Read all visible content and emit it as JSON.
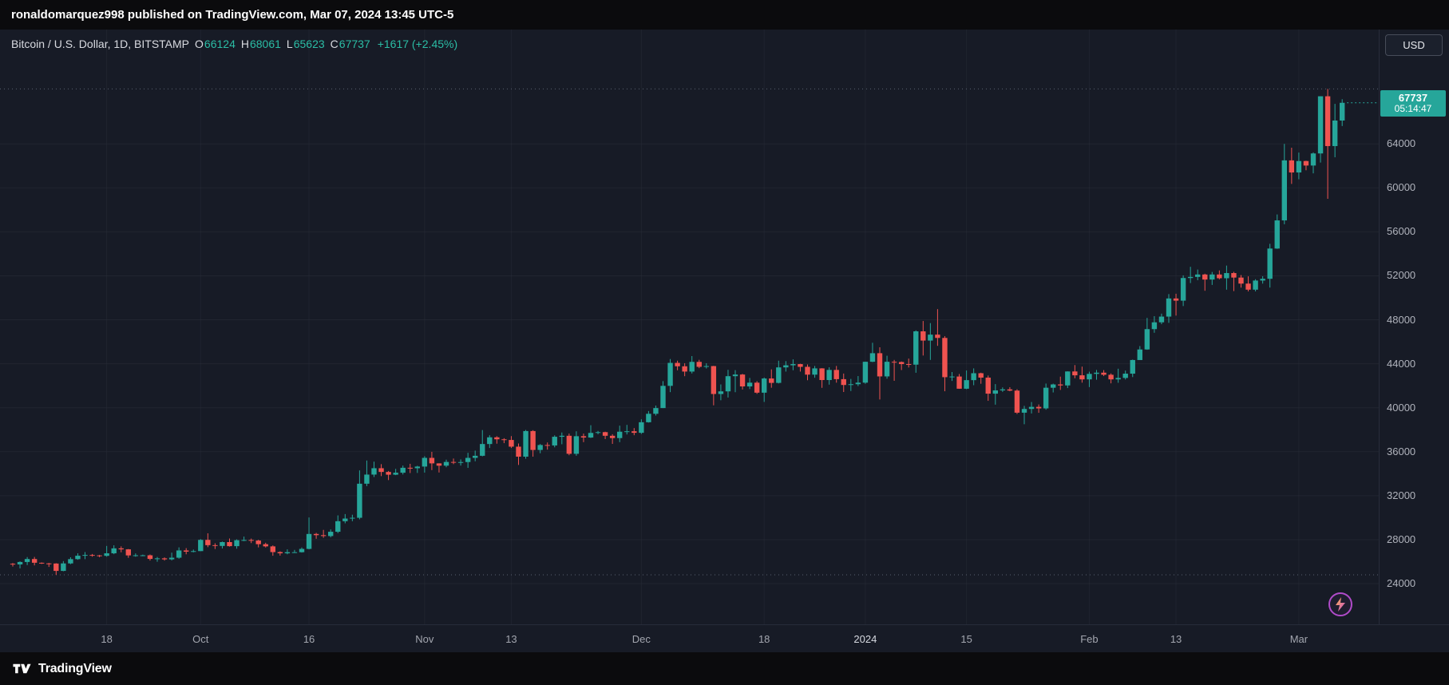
{
  "topbar": {
    "text": "ronaldomarquez998 published on TradingView.com, Mar 07, 2024 13:45 UTC-5"
  },
  "legend": {
    "title": "Bitcoin / U.S. Dollar, 1D, BITSTAMP",
    "ohlc": [
      {
        "label": "O",
        "value": "66124"
      },
      {
        "label": "H",
        "value": "68061"
      },
      {
        "label": "L",
        "value": "65623"
      },
      {
        "label": "C",
        "value": "67737"
      }
    ],
    "change": "+1617 (+2.45%)"
  },
  "currency_button": "USD",
  "price_axis": {
    "labels": [
      "64000",
      "60000",
      "56000",
      "52000",
      "48000",
      "44000",
      "40000",
      "36000",
      "32000",
      "28000",
      "24000"
    ],
    "badge": {
      "price": "67737",
      "countdown": "05:14:47"
    }
  },
  "time_axis": {
    "ticks": [
      {
        "index": 13,
        "label": "18"
      },
      {
        "index": 26,
        "label": "Oct"
      },
      {
        "index": 41,
        "label": "16"
      },
      {
        "index": 57,
        "label": "Nov"
      },
      {
        "index": 69,
        "label": "13"
      },
      {
        "index": 87,
        "label": "Dec"
      },
      {
        "index": 104,
        "label": "18"
      },
      {
        "index": 118,
        "label": "2024",
        "strong": true
      },
      {
        "index": 132,
        "label": "15"
      },
      {
        "index": 149,
        "label": "Feb"
      },
      {
        "index": 161,
        "label": "13"
      },
      {
        "index": 178,
        "label": "Mar"
      }
    ]
  },
  "footer": {
    "brand": "TradingView"
  },
  "colors": {
    "up": "#26a69a",
    "down": "#ef5350",
    "grid": "rgba(42,46,57,0.55)",
    "vgrid": "rgba(42,46,57,0.45)",
    "dotted": "#596070",
    "badge_bg": "#26a69a",
    "axis_text": "#b0b3bc",
    "background": "#171b26"
  },
  "chart_data": {
    "type": "candlestick",
    "title": "Bitcoin / U.S. Dollar, 1D, BITSTAMP",
    "symbol": "BTCUSD",
    "exchange": "BITSTAMP",
    "interval": "1D",
    "start_date": "2023-09-05",
    "end_date": "2024-03-07",
    "last_price": 67737,
    "price_range_visible": [
      20300,
      74400
    ],
    "grid_prices": [
      24000,
      28000,
      32000,
      36000,
      40000,
      44000,
      48000,
      52000,
      56000,
      60000,
      64000
    ],
    "high_line": 69000,
    "low_line": 24800,
    "candles_format": [
      "open",
      "high",
      "low",
      "close"
    ],
    "candles": [
      [
        25810,
        25870,
        25560,
        25750
      ],
      [
        25750,
        26030,
        25390,
        25970
      ],
      [
        25970,
        26420,
        25690,
        26240
      ],
      [
        26240,
        26430,
        25660,
        25900
      ],
      [
        25900,
        25930,
        25790,
        25840
      ],
      [
        25840,
        25890,
        25520,
        25830
      ],
      [
        25830,
        25860,
        24800,
        25160
      ],
      [
        25160,
        26050,
        25130,
        25840
      ],
      [
        25840,
        26400,
        25770,
        26230
      ],
      [
        26230,
        26760,
        26170,
        26540
      ],
      [
        26540,
        26870,
        26230,
        26610
      ],
      [
        26610,
        26700,
        26450,
        26570
      ],
      [
        26570,
        26620,
        26400,
        26530
      ],
      [
        26530,
        27430,
        26450,
        26760
      ],
      [
        26760,
        27490,
        26680,
        27210
      ],
      [
        27210,
        27390,
        26850,
        27120
      ],
      [
        27120,
        27150,
        26350,
        26570
      ],
      [
        26570,
        26750,
        26450,
        26580
      ],
      [
        26580,
        26640,
        26500,
        26580
      ],
      [
        26580,
        26650,
        26100,
        26250
      ],
      [
        26250,
        26430,
        25990,
        26300
      ],
      [
        26300,
        26390,
        26100,
        26210
      ],
      [
        26210,
        26820,
        26110,
        26360
      ],
      [
        26360,
        27300,
        26270,
        27020
      ],
      [
        27020,
        27230,
        26670,
        26910
      ],
      [
        26910,
        27100,
        26850,
        26960
      ],
      [
        26960,
        28050,
        26960,
        27980
      ],
      [
        27980,
        28580,
        27320,
        27500
      ],
      [
        27500,
        27670,
        27150,
        27430
      ],
      [
        27430,
        27830,
        27200,
        27780
      ],
      [
        27780,
        28110,
        27370,
        27410
      ],
      [
        27410,
        28030,
        27180,
        27950
      ],
      [
        27950,
        28280,
        27870,
        27970
      ],
      [
        27970,
        28100,
        27690,
        27920
      ],
      [
        27920,
        27990,
        27300,
        27590
      ],
      [
        27590,
        27720,
        27290,
        27390
      ],
      [
        27390,
        27480,
        26540,
        26870
      ],
      [
        26870,
        26940,
        26550,
        26760
      ],
      [
        26760,
        27120,
        26670,
        26860
      ],
      [
        26860,
        27070,
        26800,
        26860
      ],
      [
        26860,
        27290,
        26830,
        27160
      ],
      [
        27160,
        30020,
        27120,
        28520
      ],
      [
        28520,
        28620,
        28080,
        28410
      ],
      [
        28410,
        28890,
        28170,
        28330
      ],
      [
        28330,
        28930,
        28210,
        28720
      ],
      [
        28720,
        30210,
        28600,
        29680
      ],
      [
        29680,
        30330,
        29490,
        29920
      ],
      [
        29920,
        30270,
        29680,
        29990
      ],
      [
        29990,
        34300,
        29850,
        33090
      ],
      [
        33090,
        35200,
        32870,
        33920
      ],
      [
        33920,
        35100,
        33700,
        34500
      ],
      [
        34500,
        34870,
        33780,
        34160
      ],
      [
        34160,
        34250,
        33420,
        33910
      ],
      [
        33910,
        34440,
        33870,
        34090
      ],
      [
        34090,
        34740,
        33930,
        34540
      ],
      [
        34540,
        34900,
        34060,
        34500
      ],
      [
        34500,
        34720,
        34070,
        34650
      ],
      [
        34650,
        35590,
        34100,
        35440
      ],
      [
        35440,
        35990,
        34330,
        34940
      ],
      [
        34940,
        34950,
        34110,
        34730
      ],
      [
        34730,
        35280,
        34590,
        35070
      ],
      [
        35070,
        35380,
        34870,
        35050
      ],
      [
        35050,
        35300,
        34740,
        35060
      ],
      [
        35060,
        35900,
        34530,
        35440
      ],
      [
        35440,
        36100,
        35130,
        35630
      ],
      [
        35630,
        37970,
        35580,
        36700
      ],
      [
        36700,
        37500,
        36340,
        37310
      ],
      [
        37310,
        37410,
        36730,
        37130
      ],
      [
        37130,
        37230,
        36780,
        37070
      ],
      [
        37070,
        37420,
        36340,
        36460
      ],
      [
        36460,
        36750,
        34800,
        35550
      ],
      [
        35550,
        37980,
        35360,
        37880
      ],
      [
        37880,
        37960,
        35550,
        36160
      ],
      [
        36160,
        36700,
        35860,
        36610
      ],
      [
        36610,
        36840,
        36190,
        36570
      ],
      [
        36570,
        37490,
        36400,
        37360
      ],
      [
        37360,
        37750,
        36680,
        37450
      ],
      [
        37450,
        37650,
        35680,
        35810
      ],
      [
        35810,
        37860,
        35630,
        37410
      ],
      [
        37410,
        37650,
        36870,
        37290
      ],
      [
        37290,
        38410,
        37250,
        37710
      ],
      [
        37710,
        37890,
        37590,
        37780
      ],
      [
        37780,
        37820,
        37150,
        37450
      ],
      [
        37450,
        37590,
        36710,
        37240
      ],
      [
        37240,
        38370,
        36870,
        37820
      ],
      [
        37820,
        38440,
        37570,
        37860
      ],
      [
        37860,
        38150,
        37500,
        37720
      ],
      [
        37720,
        38950,
        37620,
        38680
      ],
      [
        38680,
        39700,
        38650,
        39450
      ],
      [
        39450,
        40200,
        39290,
        39970
      ],
      [
        39970,
        42420,
        39970,
        41990
      ],
      [
        41990,
        44430,
        41420,
        44080
      ],
      [
        44080,
        44280,
        43410,
        43770
      ],
      [
        43770,
        44050,
        42870,
        43290
      ],
      [
        43290,
        44700,
        43120,
        44170
      ],
      [
        44170,
        44360,
        43600,
        43720
      ],
      [
        43720,
        44050,
        43570,
        43790
      ],
      [
        43790,
        43810,
        40220,
        41250
      ],
      [
        41250,
        42120,
        40680,
        41490
      ],
      [
        41490,
        43450,
        40930,
        42870
      ],
      [
        42870,
        43420,
        41410,
        43020
      ],
      [
        43020,
        43080,
        41660,
        41940
      ],
      [
        41940,
        42710,
        41700,
        42280
      ],
      [
        42280,
        42420,
        41260,
        41370
      ],
      [
        41370,
        42750,
        40530,
        42660
      ],
      [
        42660,
        43490,
        41820,
        42260
      ],
      [
        42260,
        44280,
        42210,
        43670
      ],
      [
        43670,
        44240,
        43290,
        43860
      ],
      [
        43860,
        44400,
        43410,
        43970
      ],
      [
        43970,
        44000,
        43290,
        43720
      ],
      [
        43720,
        43940,
        42500,
        43010
      ],
      [
        43010,
        43800,
        42730,
        43580
      ],
      [
        43580,
        43600,
        41810,
        42520
      ],
      [
        42520,
        43680,
        42100,
        43440
      ],
      [
        43440,
        43800,
        42280,
        42600
      ],
      [
        42600,
        43110,
        41430,
        42070
      ],
      [
        42070,
        42620,
        41520,
        42140
      ],
      [
        42140,
        42880,
        41970,
        42280
      ],
      [
        42280,
        44180,
        42180,
        44180
      ],
      [
        44180,
        45910,
        44150,
        44960
      ],
      [
        44960,
        45500,
        40750,
        42850
      ],
      [
        42850,
        44730,
        42640,
        44180
      ],
      [
        44180,
        44350,
        42450,
        44160
      ],
      [
        44160,
        44210,
        43430,
        43970
      ],
      [
        43970,
        44470,
        43660,
        43920
      ],
      [
        43920,
        47040,
        43180,
        46950
      ],
      [
        46950,
        47890,
        44750,
        46110
      ],
      [
        46110,
        47700,
        44350,
        46650
      ],
      [
        46650,
        48970,
        45630,
        46350
      ],
      [
        46350,
        46510,
        41500,
        42780
      ],
      [
        42780,
        43250,
        42440,
        42840
      ],
      [
        42840,
        43070,
        41720,
        41730
      ],
      [
        41730,
        43390,
        41690,
        42510
      ],
      [
        42510,
        43580,
        42050,
        43140
      ],
      [
        43140,
        43190,
        42180,
        42740
      ],
      [
        42740,
        42930,
        40630,
        41280
      ],
      [
        41280,
        42150,
        40280,
        41580
      ],
      [
        41580,
        41850,
        41440,
        41670
      ],
      [
        41670,
        41870,
        41500,
        41560
      ],
      [
        41560,
        41680,
        39430,
        39550
      ],
      [
        39550,
        40170,
        38500,
        39890
      ],
      [
        39890,
        40520,
        39480,
        40080
      ],
      [
        40080,
        40300,
        39540,
        39940
      ],
      [
        39940,
        42200,
        39820,
        41820
      ],
      [
        41820,
        42190,
        41390,
        42120
      ],
      [
        42120,
        42830,
        41620,
        42030
      ],
      [
        42030,
        43310,
        41790,
        43300
      ],
      [
        43300,
        43880,
        42680,
        42950
      ],
      [
        42950,
        43740,
        42280,
        42580
      ],
      [
        42580,
        43280,
        41880,
        43080
      ],
      [
        43080,
        43440,
        42550,
        43190
      ],
      [
        43190,
        43420,
        42880,
        43000
      ],
      [
        43000,
        43120,
        42220,
        42580
      ],
      [
        42580,
        43550,
        42270,
        42710
      ],
      [
        42710,
        43380,
        42570,
        43100
      ],
      [
        43100,
        44380,
        42790,
        44340
      ],
      [
        44340,
        45610,
        44340,
        45300
      ],
      [
        45300,
        48170,
        45270,
        47150
      ],
      [
        47150,
        48330,
        46820,
        47770
      ],
      [
        47770,
        48560,
        47600,
        48290
      ],
      [
        48290,
        50340,
        47720,
        49940
      ],
      [
        49940,
        50370,
        48380,
        49740
      ],
      [
        49740,
        52040,
        49250,
        51800
      ],
      [
        51800,
        52820,
        51340,
        51900
      ],
      [
        51900,
        52570,
        51600,
        52120
      ],
      [
        52120,
        52190,
        50640,
        51660
      ],
      [
        51660,
        52350,
        51170,
        52120
      ],
      [
        52120,
        52490,
        51680,
        51780
      ],
      [
        51780,
        52930,
        50740,
        52250
      ],
      [
        52250,
        52360,
        50610,
        51840
      ],
      [
        51840,
        52070,
        50930,
        51290
      ],
      [
        51290,
        51950,
        50580,
        50740
      ],
      [
        50740,
        51690,
        50580,
        51570
      ],
      [
        51570,
        51960,
        51290,
        51730
      ],
      [
        51730,
        54910,
        50930,
        54480
      ],
      [
        54480,
        57580,
        54450,
        57040
      ],
      [
        57040,
        64000,
        56690,
        62500
      ],
      [
        62500,
        63650,
        60360,
        61400
      ],
      [
        61400,
        63210,
        60780,
        62440
      ],
      [
        62440,
        62470,
        61600,
        62030
      ],
      [
        62030,
        63230,
        61320,
        63130
      ],
      [
        63130,
        68330,
        62300,
        68330
      ],
      [
        68330,
        69000,
        59005,
        63800
      ],
      [
        63800,
        67640,
        62780,
        66124
      ],
      [
        66124,
        68061,
        65623,
        67737
      ]
    ]
  }
}
